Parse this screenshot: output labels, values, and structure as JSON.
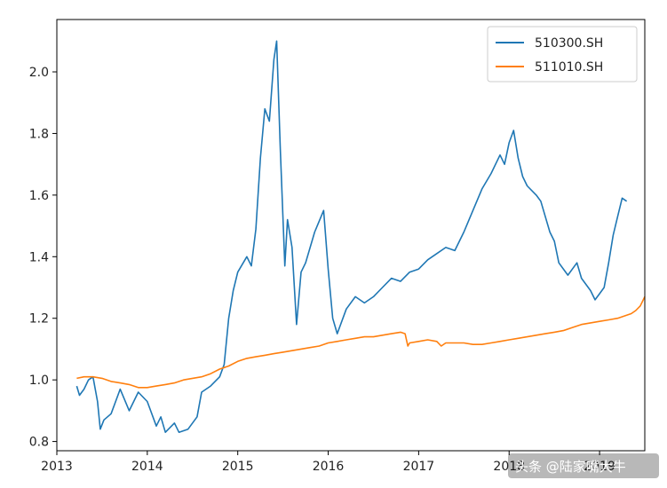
{
  "chart_data": {
    "type": "line",
    "title": "",
    "xlabel": "",
    "ylabel": "",
    "xlim": [
      2013.0,
      2019.5
    ],
    "ylim": [
      0.77,
      2.17
    ],
    "x_ticks": [
      2013,
      2014,
      2015,
      2016,
      2017,
      2018,
      2019
    ],
    "x_tick_labels": [
      "2013",
      "2014",
      "2015",
      "2016",
      "2017",
      "2018",
      "2019"
    ],
    "y_ticks": [
      0.8,
      1.0,
      1.2,
      1.4,
      1.6,
      1.8,
      2.0
    ],
    "y_tick_labels": [
      "0.8",
      "1.0",
      "1.2",
      "1.4",
      "1.6",
      "1.8",
      "2.0"
    ],
    "grid": false,
    "legend_position": "top-right",
    "series": [
      {
        "name": "510300.SH",
        "color": "#1f77b4",
        "points": [
          [
            2013.22,
            0.98
          ],
          [
            2013.25,
            0.95
          ],
          [
            2013.3,
            0.97
          ],
          [
            2013.35,
            1.0
          ],
          [
            2013.4,
            1.01
          ],
          [
            2013.45,
            0.93
          ],
          [
            2013.48,
            0.84
          ],
          [
            2013.52,
            0.87
          ],
          [
            2013.6,
            0.89
          ],
          [
            2013.7,
            0.97
          ],
          [
            2013.8,
            0.9
          ],
          [
            2013.9,
            0.96
          ],
          [
            2014.0,
            0.93
          ],
          [
            2014.1,
            0.85
          ],
          [
            2014.15,
            0.88
          ],
          [
            2014.2,
            0.83
          ],
          [
            2014.3,
            0.86
          ],
          [
            2014.35,
            0.83
          ],
          [
            2014.45,
            0.84
          ],
          [
            2014.55,
            0.88
          ],
          [
            2014.6,
            0.96
          ],
          [
            2014.7,
            0.98
          ],
          [
            2014.8,
            1.01
          ],
          [
            2014.85,
            1.05
          ],
          [
            2014.9,
            1.2
          ],
          [
            2014.95,
            1.29
          ],
          [
            2015.0,
            1.35
          ],
          [
            2015.1,
            1.4
          ],
          [
            2015.15,
            1.37
          ],
          [
            2015.2,
            1.49
          ],
          [
            2015.25,
            1.72
          ],
          [
            2015.3,
            1.88
          ],
          [
            2015.35,
            1.84
          ],
          [
            2015.4,
            2.04
          ],
          [
            2015.43,
            2.1
          ],
          [
            2015.47,
            1.75
          ],
          [
            2015.52,
            1.37
          ],
          [
            2015.55,
            1.52
          ],
          [
            2015.6,
            1.43
          ],
          [
            2015.65,
            1.18
          ],
          [
            2015.7,
            1.35
          ],
          [
            2015.75,
            1.38
          ],
          [
            2015.85,
            1.48
          ],
          [
            2015.95,
            1.55
          ],
          [
            2016.0,
            1.36
          ],
          [
            2016.05,
            1.2
          ],
          [
            2016.1,
            1.15
          ],
          [
            2016.2,
            1.23
          ],
          [
            2016.3,
            1.27
          ],
          [
            2016.4,
            1.25
          ],
          [
            2016.5,
            1.27
          ],
          [
            2016.6,
            1.3
          ],
          [
            2016.7,
            1.33
          ],
          [
            2016.8,
            1.32
          ],
          [
            2016.9,
            1.35
          ],
          [
            2017.0,
            1.36
          ],
          [
            2017.1,
            1.39
          ],
          [
            2017.2,
            1.41
          ],
          [
            2017.3,
            1.43
          ],
          [
            2017.4,
            1.42
          ],
          [
            2017.5,
            1.48
          ],
          [
            2017.6,
            1.55
          ],
          [
            2017.7,
            1.62
          ],
          [
            2017.8,
            1.67
          ],
          [
            2017.9,
            1.73
          ],
          [
            2017.95,
            1.7
          ],
          [
            2018.0,
            1.77
          ],
          [
            2018.05,
            1.81
          ],
          [
            2018.1,
            1.72
          ],
          [
            2018.15,
            1.66
          ],
          [
            2018.2,
            1.63
          ],
          [
            2018.3,
            1.6
          ],
          [
            2018.35,
            1.58
          ],
          [
            2018.45,
            1.48
          ],
          [
            2018.5,
            1.45
          ],
          [
            2018.55,
            1.38
          ],
          [
            2018.65,
            1.34
          ],
          [
            2018.75,
            1.38
          ],
          [
            2018.8,
            1.33
          ],
          [
            2018.9,
            1.29
          ],
          [
            2018.95,
            1.26
          ],
          [
            2019.0,
            1.28
          ],
          [
            2019.05,
            1.3
          ],
          [
            2019.1,
            1.38
          ],
          [
            2019.15,
            1.47
          ],
          [
            2019.2,
            1.53
          ],
          [
            2019.25,
            1.59
          ],
          [
            2019.3,
            1.58
          ]
        ]
      },
      {
        "name": "511010.SH",
        "color": "#ff7f0e",
        "points": [
          [
            2013.22,
            1.005
          ],
          [
            2013.3,
            1.01
          ],
          [
            2013.4,
            1.01
          ],
          [
            2013.5,
            1.005
          ],
          [
            2013.6,
            0.995
          ],
          [
            2013.7,
            0.99
          ],
          [
            2013.8,
            0.985
          ],
          [
            2013.9,
            0.975
          ],
          [
            2014.0,
            0.975
          ],
          [
            2014.1,
            0.98
          ],
          [
            2014.2,
            0.985
          ],
          [
            2014.3,
            0.99
          ],
          [
            2014.4,
            1.0
          ],
          [
            2014.5,
            1.005
          ],
          [
            2014.6,
            1.01
          ],
          [
            2014.7,
            1.02
          ],
          [
            2014.8,
            1.035
          ],
          [
            2014.9,
            1.045
          ],
          [
            2015.0,
            1.06
          ],
          [
            2015.1,
            1.07
          ],
          [
            2015.2,
            1.075
          ],
          [
            2015.3,
            1.08
          ],
          [
            2015.4,
            1.085
          ],
          [
            2015.5,
            1.09
          ],
          [
            2015.6,
            1.095
          ],
          [
            2015.7,
            1.1
          ],
          [
            2015.8,
            1.105
          ],
          [
            2015.9,
            1.11
          ],
          [
            2016.0,
            1.12
          ],
          [
            2016.1,
            1.125
          ],
          [
            2016.2,
            1.13
          ],
          [
            2016.3,
            1.135
          ],
          [
            2016.4,
            1.14
          ],
          [
            2016.5,
            1.14
          ],
          [
            2016.6,
            1.145
          ],
          [
            2016.7,
            1.15
          ],
          [
            2016.8,
            1.155
          ],
          [
            2016.85,
            1.15
          ],
          [
            2016.88,
            1.11
          ],
          [
            2016.9,
            1.12
          ],
          [
            2017.0,
            1.125
          ],
          [
            2017.1,
            1.13
          ],
          [
            2017.2,
            1.125
          ],
          [
            2017.25,
            1.11
          ],
          [
            2017.3,
            1.12
          ],
          [
            2017.4,
            1.12
          ],
          [
            2017.5,
            1.12
          ],
          [
            2017.6,
            1.115
          ],
          [
            2017.7,
            1.115
          ],
          [
            2017.8,
            1.12
          ],
          [
            2017.9,
            1.125
          ],
          [
            2018.0,
            1.13
          ],
          [
            2018.1,
            1.135
          ],
          [
            2018.2,
            1.14
          ],
          [
            2018.3,
            1.145
          ],
          [
            2018.4,
            1.15
          ],
          [
            2018.5,
            1.155
          ],
          [
            2018.6,
            1.16
          ],
          [
            2018.7,
            1.17
          ],
          [
            2018.8,
            1.18
          ],
          [
            2018.9,
            1.185
          ],
          [
            2019.0,
            1.19
          ],
          [
            2019.1,
            1.195
          ],
          [
            2019.2,
            1.2
          ],
          [
            2019.25,
            1.205
          ],
          [
            2019.3,
            1.21
          ],
          [
            2019.35,
            1.215
          ],
          [
            2019.4,
            1.225
          ],
          [
            2019.45,
            1.24
          ],
          [
            2019.5,
            1.27
          ]
        ]
      }
    ]
  },
  "watermark": {
    "text": "头条 @陆家嘴大牛"
  }
}
